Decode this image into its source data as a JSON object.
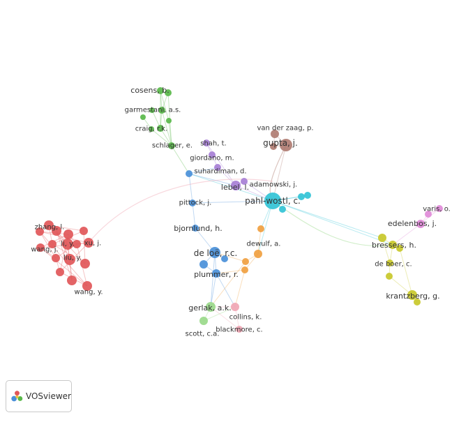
{
  "colors": {
    "red": "#e15759",
    "green": "#59b84a",
    "blue": "#4a90d9",
    "purple": "#a77fd6",
    "brown": "#b07c72",
    "cyan": "#32c3d6",
    "orange": "#f0a040",
    "pink": "#f0a6b4",
    "lightgreen": "#9ad98a",
    "magenta": "#e08ad8",
    "yellow": "#c8c82a"
  },
  "logo": {
    "text": "VOSviewer",
    "icon": "vosviewer-logo-icon"
  },
  "labels": [
    {
      "id": "cosens",
      "text": "cosens, b."
    },
    {
      "id": "garmestani",
      "text": "garmestani, a.s."
    },
    {
      "id": "craig",
      "text": "craig, r.k."
    },
    {
      "id": "schlager",
      "text": "schlager, e."
    },
    {
      "id": "shah",
      "text": "shah, t."
    },
    {
      "id": "giordano",
      "text": "giordano, m."
    },
    {
      "id": "suhardiman",
      "text": "suhardiman, d."
    },
    {
      "id": "lebel",
      "text": "lebel, l."
    },
    {
      "id": "vanderzaag",
      "text": "van der zaag, p."
    },
    {
      "id": "gupta",
      "text": "gupta, j."
    },
    {
      "id": "adamowski",
      "text": "adamowski, j."
    },
    {
      "id": "pahlwostl",
      "text": "pahl-wostl, c."
    },
    {
      "id": "pittock",
      "text": "pittock, j."
    },
    {
      "id": "bjornlund",
      "text": "bjornlund, h."
    },
    {
      "id": "deloe",
      "text": "de loë, r.c."
    },
    {
      "id": "plummer",
      "text": "plummer, r."
    },
    {
      "id": "dewulf",
      "text": "dewulf, a."
    },
    {
      "id": "gerlak",
      "text": "gerlak, a.k."
    },
    {
      "id": "collins",
      "text": "collins, k."
    },
    {
      "id": "blackmore",
      "text": "blackmore, c."
    },
    {
      "id": "scott",
      "text": "scott, c.a."
    },
    {
      "id": "zhang",
      "text": "zhang, l."
    },
    {
      "id": "wangj",
      "text": "wang, j."
    },
    {
      "id": "liy",
      "text": "li, y."
    },
    {
      "id": "xuj",
      "text": "xu, j."
    },
    {
      "id": "liuy",
      "text": "liu, y."
    },
    {
      "id": "wangy",
      "text": "wang, y."
    },
    {
      "id": "varis",
      "text": "varis, o."
    },
    {
      "id": "edelenbos",
      "text": "edelenbos, j."
    },
    {
      "id": "bressers",
      "text": "bressers, h."
    },
    {
      "id": "deboer",
      "text": "de boer, c."
    },
    {
      "id": "krantzberg",
      "text": "krantzberg, g."
    }
  ]
}
